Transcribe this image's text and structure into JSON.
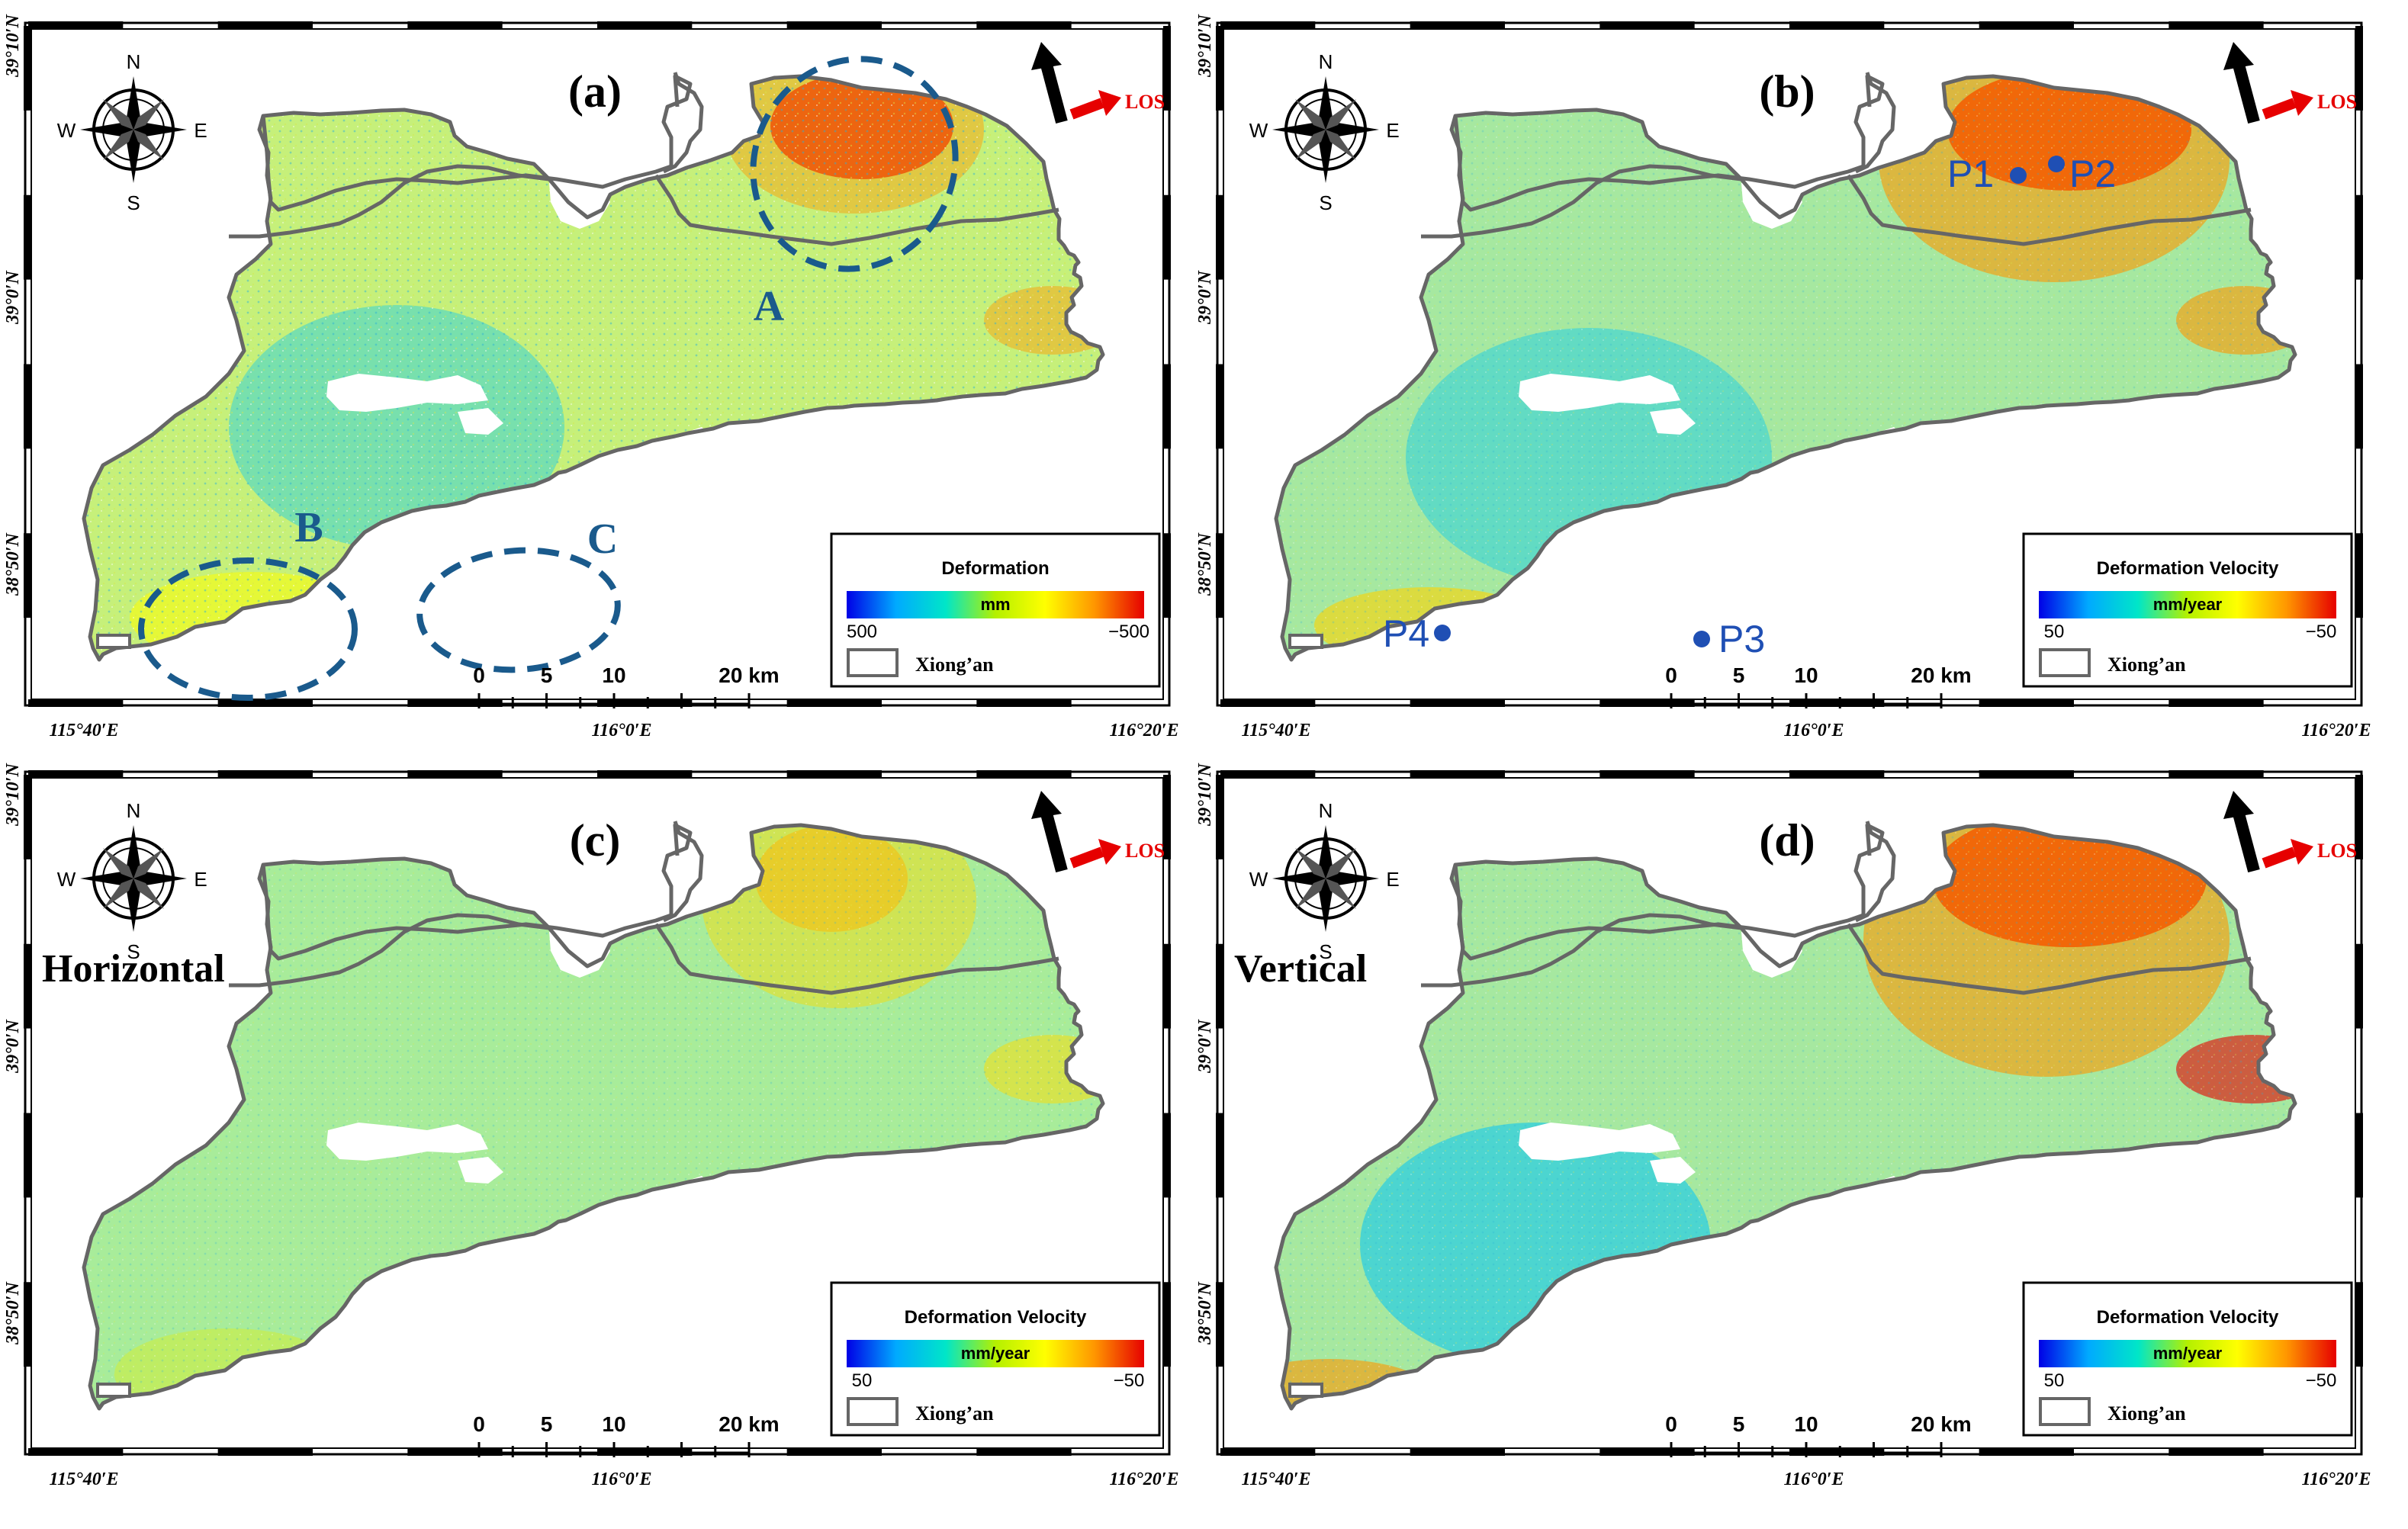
{
  "figure": {
    "panels": [
      {
        "id": "a",
        "label": "(a)",
        "subtitle": "",
        "legend_title": "Deformation",
        "legend_unit": "mm",
        "legend_min": "500",
        "legend_max": "−500",
        "legend_item": "Xiong’an",
        "regions": [
          {
            "name": "A"
          },
          {
            "name": "B"
          },
          {
            "name": "C"
          }
        ],
        "points": []
      },
      {
        "id": "b",
        "label": "(b)",
        "subtitle": "",
        "legend_title": "Deformation Velocity",
        "legend_unit": "mm/year",
        "legend_min": "50",
        "legend_max": "−50",
        "legend_item": "Xiong’an",
        "regions": [],
        "points": [
          {
            "name": "P1"
          },
          {
            "name": "P2"
          },
          {
            "name": "P3"
          },
          {
            "name": "P4"
          }
        ]
      },
      {
        "id": "c",
        "label": "(c)",
        "subtitle": "Horizontal",
        "legend_title": "Deformation Velocity",
        "legend_unit": "mm/year",
        "legend_min": "50",
        "legend_max": "−50",
        "legend_item": "Xiong’an",
        "regions": [],
        "points": []
      },
      {
        "id": "d",
        "label": "(d)",
        "subtitle": "Vertical",
        "legend_title": "Deformation Velocity",
        "legend_unit": "mm/year",
        "legend_min": "50",
        "legend_max": "−50",
        "legend_item": "Xiong’an",
        "regions": [],
        "points": []
      }
    ],
    "compass": {
      "n": "N",
      "s": "S",
      "e": "E",
      "w": "W"
    },
    "los_label": "LOS",
    "scale_bar": {
      "ticks": [
        "0",
        "5",
        "10"
      ],
      "end": "20 km"
    },
    "lon_labels": [
      "115°40′E",
      "116°0′E",
      "116°20′E"
    ],
    "lat_labels": [
      "39°10′N",
      "39°0′N",
      "38°50′N"
    ],
    "colors": {
      "frame": "#000000",
      "boundary": "#666666",
      "outline_marker": "#1a5a8c",
      "point_marker": "#1f4fb4",
      "los_arrow": "#e60000",
      "colormap": [
        "#0000e6",
        "#00aaff",
        "#00e6c8",
        "#b4f000",
        "#ffff00",
        "#ff9600",
        "#e60000"
      ]
    }
  }
}
